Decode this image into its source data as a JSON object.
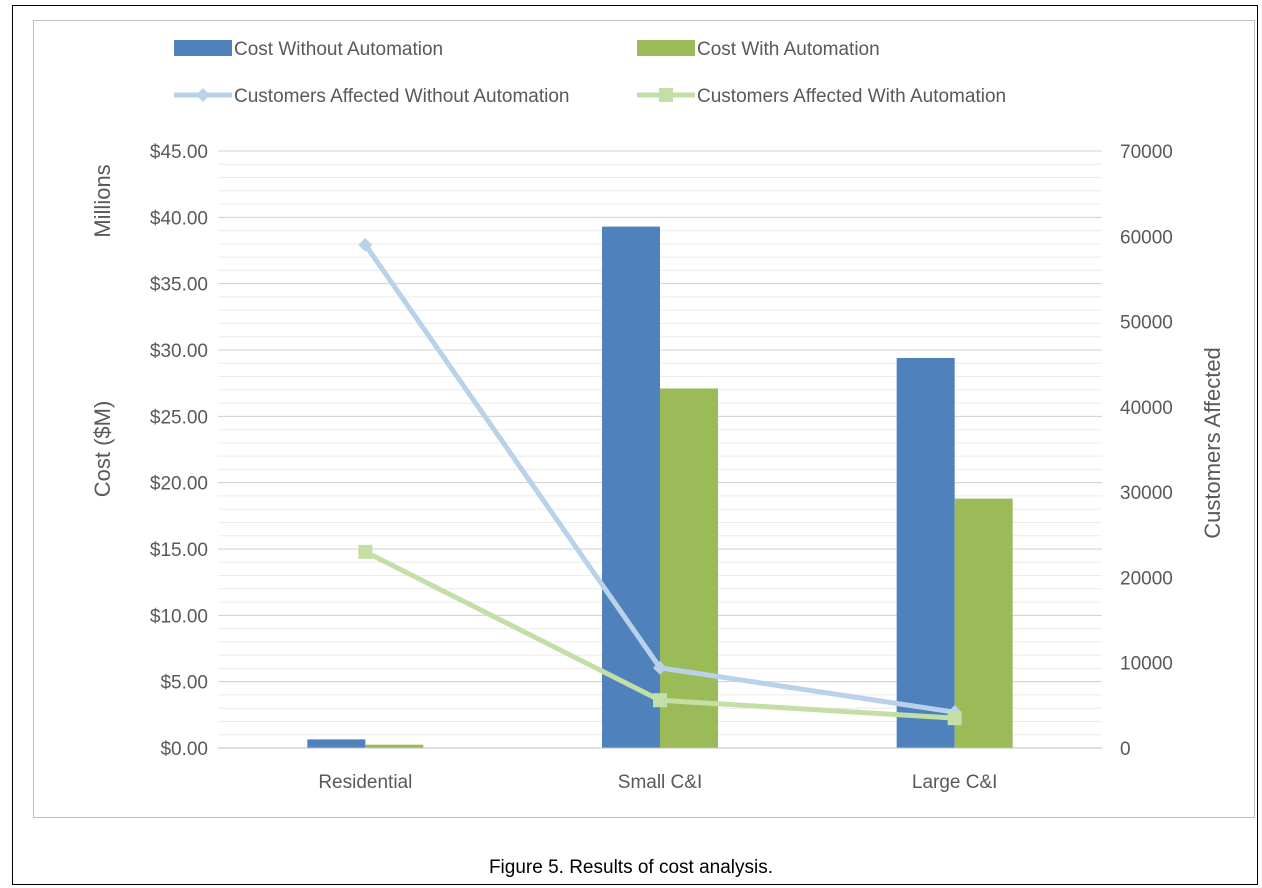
{
  "caption": "Figure 5. Results of cost analysis.",
  "colors": {
    "cost_without": "#4f81bd",
    "cost_with": "#9bbb59",
    "customers_without": "#b9d2ea",
    "customers_with": "#c3dfa6",
    "grid": "#d9d9d9",
    "text": "#595959"
  },
  "chart_data": {
    "type": "bar",
    "categories": [
      "Residential",
      "Small C&I",
      "Large C&I"
    ],
    "series": [
      {
        "name": "Cost Without Automation",
        "type": "bar",
        "axis": "left",
        "values": [
          0.65,
          39.3,
          29.4
        ]
      },
      {
        "name": "Cost With Automation",
        "type": "bar",
        "axis": "left",
        "values": [
          0.25,
          27.1,
          18.8
        ]
      },
      {
        "name": "Customers Affected Without Automation",
        "type": "line",
        "marker": "diamond",
        "axis": "right",
        "values": [
          59000,
          9400,
          4200
        ]
      },
      {
        "name": "Customers Affected With Automation",
        "type": "line",
        "marker": "square",
        "axis": "right",
        "values": [
          23000,
          5600,
          3500
        ]
      }
    ],
    "y_left": {
      "label": "Cost ($M)",
      "units_label": "Millions",
      "range": [
        0,
        45
      ],
      "ticks": [
        0,
        5,
        10,
        15,
        20,
        25,
        30,
        35,
        40,
        45
      ],
      "tick_labels": [
        "$0.00",
        "$5.00",
        "$10.00",
        "$15.00",
        "$20.00",
        "$25.00",
        "$30.00",
        "$35.00",
        "$40.00",
        "$45.00"
      ]
    },
    "y_right": {
      "label": "Customers Affected",
      "range": [
        0,
        70000
      ],
      "ticks": [
        0,
        10000,
        20000,
        30000,
        40000,
        50000,
        60000,
        70000
      ],
      "tick_labels": [
        "0",
        "10000",
        "20000",
        "30000",
        "40000",
        "50000",
        "60000",
        "70000"
      ]
    },
    "grid": true,
    "legend_position": "top"
  }
}
